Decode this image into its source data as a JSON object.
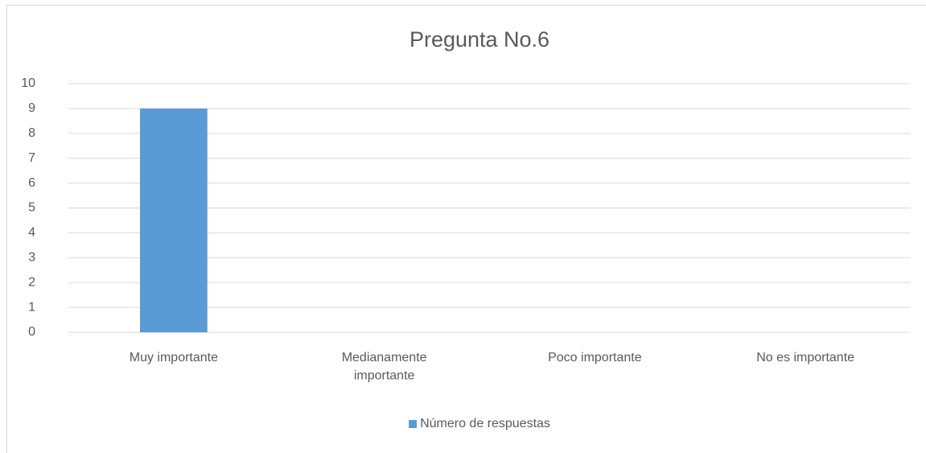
{
  "chart_data": {
    "type": "bar",
    "title": "Pregunta No.6",
    "categories": [
      "Muy importante",
      "Medianamente importante",
      "Poco importante",
      "No es importante"
    ],
    "series": [
      {
        "name": "Número de respuestas",
        "color": "#5b9bd5",
        "values": [
          9,
          0,
          0,
          0
        ]
      }
    ],
    "ylim": [
      0,
      10
    ],
    "yticks": [
      0,
      1,
      2,
      3,
      4,
      5,
      6,
      7,
      8,
      9,
      10
    ],
    "grid": true,
    "legend": "bottom"
  }
}
